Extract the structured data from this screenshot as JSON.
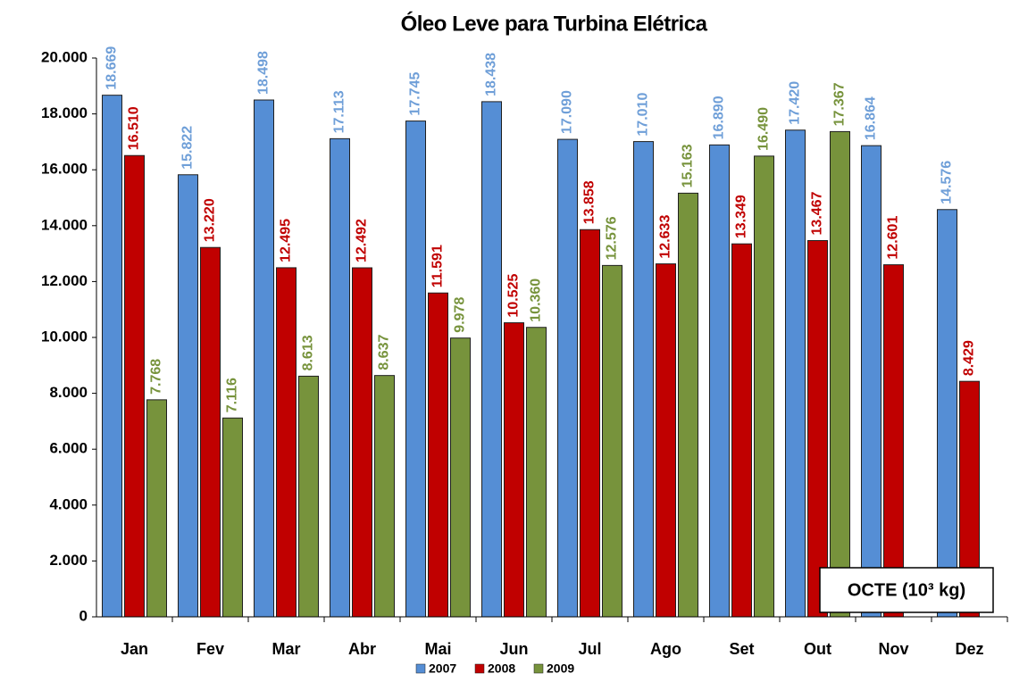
{
  "chart_data": {
    "type": "bar",
    "title": "Óleo Leve para Turbina Elétrica",
    "categories": [
      "Jan",
      "Fev",
      "Mar",
      "Abr",
      "Mai",
      "Jun",
      "Jul",
      "Ago",
      "Set",
      "Out",
      "Nov",
      "Dez"
    ],
    "series": [
      {
        "name": "2007",
        "color": "#558ed5",
        "label_color": "#6f9fd8",
        "values": [
          18669,
          15822,
          18498,
          17113,
          17745,
          18438,
          17090,
          17010,
          16890,
          17420,
          16864,
          14576
        ],
        "value_labels": [
          "18.669",
          "15.822",
          "18.498",
          "17.113",
          "17.745",
          "18.438",
          "17.090",
          "17.010",
          "16.890",
          "17.420",
          "16.864",
          "14.576"
        ]
      },
      {
        "name": "2008",
        "color": "#c00000",
        "label_color": "#c00000",
        "values": [
          16510,
          13220,
          12495,
          12492,
          11591,
          10525,
          13858,
          12633,
          13349,
          13467,
          12601,
          8429
        ],
        "value_labels": [
          "16.510",
          "13.220",
          "12.495",
          "12.492",
          "11.591",
          "10.525",
          "13.858",
          "12.633",
          "13.349",
          "13.467",
          "12.601",
          "8.429"
        ]
      },
      {
        "name": "2009",
        "color": "#77933c",
        "label_color": "#77933c",
        "values": [
          7768,
          7116,
          8613,
          8637,
          9978,
          10360,
          12576,
          15163,
          16490,
          17367,
          null,
          null
        ],
        "value_labels": [
          "7.768",
          "7.116",
          "8.613",
          "8.637",
          "9.978",
          "10.360",
          "12.576",
          "15.163",
          "16.490",
          "17.367",
          null,
          null
        ]
      }
    ],
    "ylim": [
      0,
      20000
    ],
    "yticks": [
      0,
      {
        "value": 2000,
        "label": "2.000"
      },
      {
        "value": 4000,
        "label": "4.000"
      },
      {
        "value": 6000,
        "label": "6.000"
      },
      {
        "value": 8000,
        "label": "8.000"
      },
      {
        "value": 10000,
        "label": "10.000"
      },
      {
        "value": 12000,
        "label": "12.000"
      },
      {
        "value": 14000,
        "label": "14.000"
      },
      {
        "value": 16000,
        "label": "16.000"
      },
      {
        "value": 18000,
        "label": "18.000"
      },
      {
        "value": 20000,
        "label": "20.000"
      }
    ],
    "annotation": "OCTE (10³ kg)",
    "legend": "bottom"
  }
}
